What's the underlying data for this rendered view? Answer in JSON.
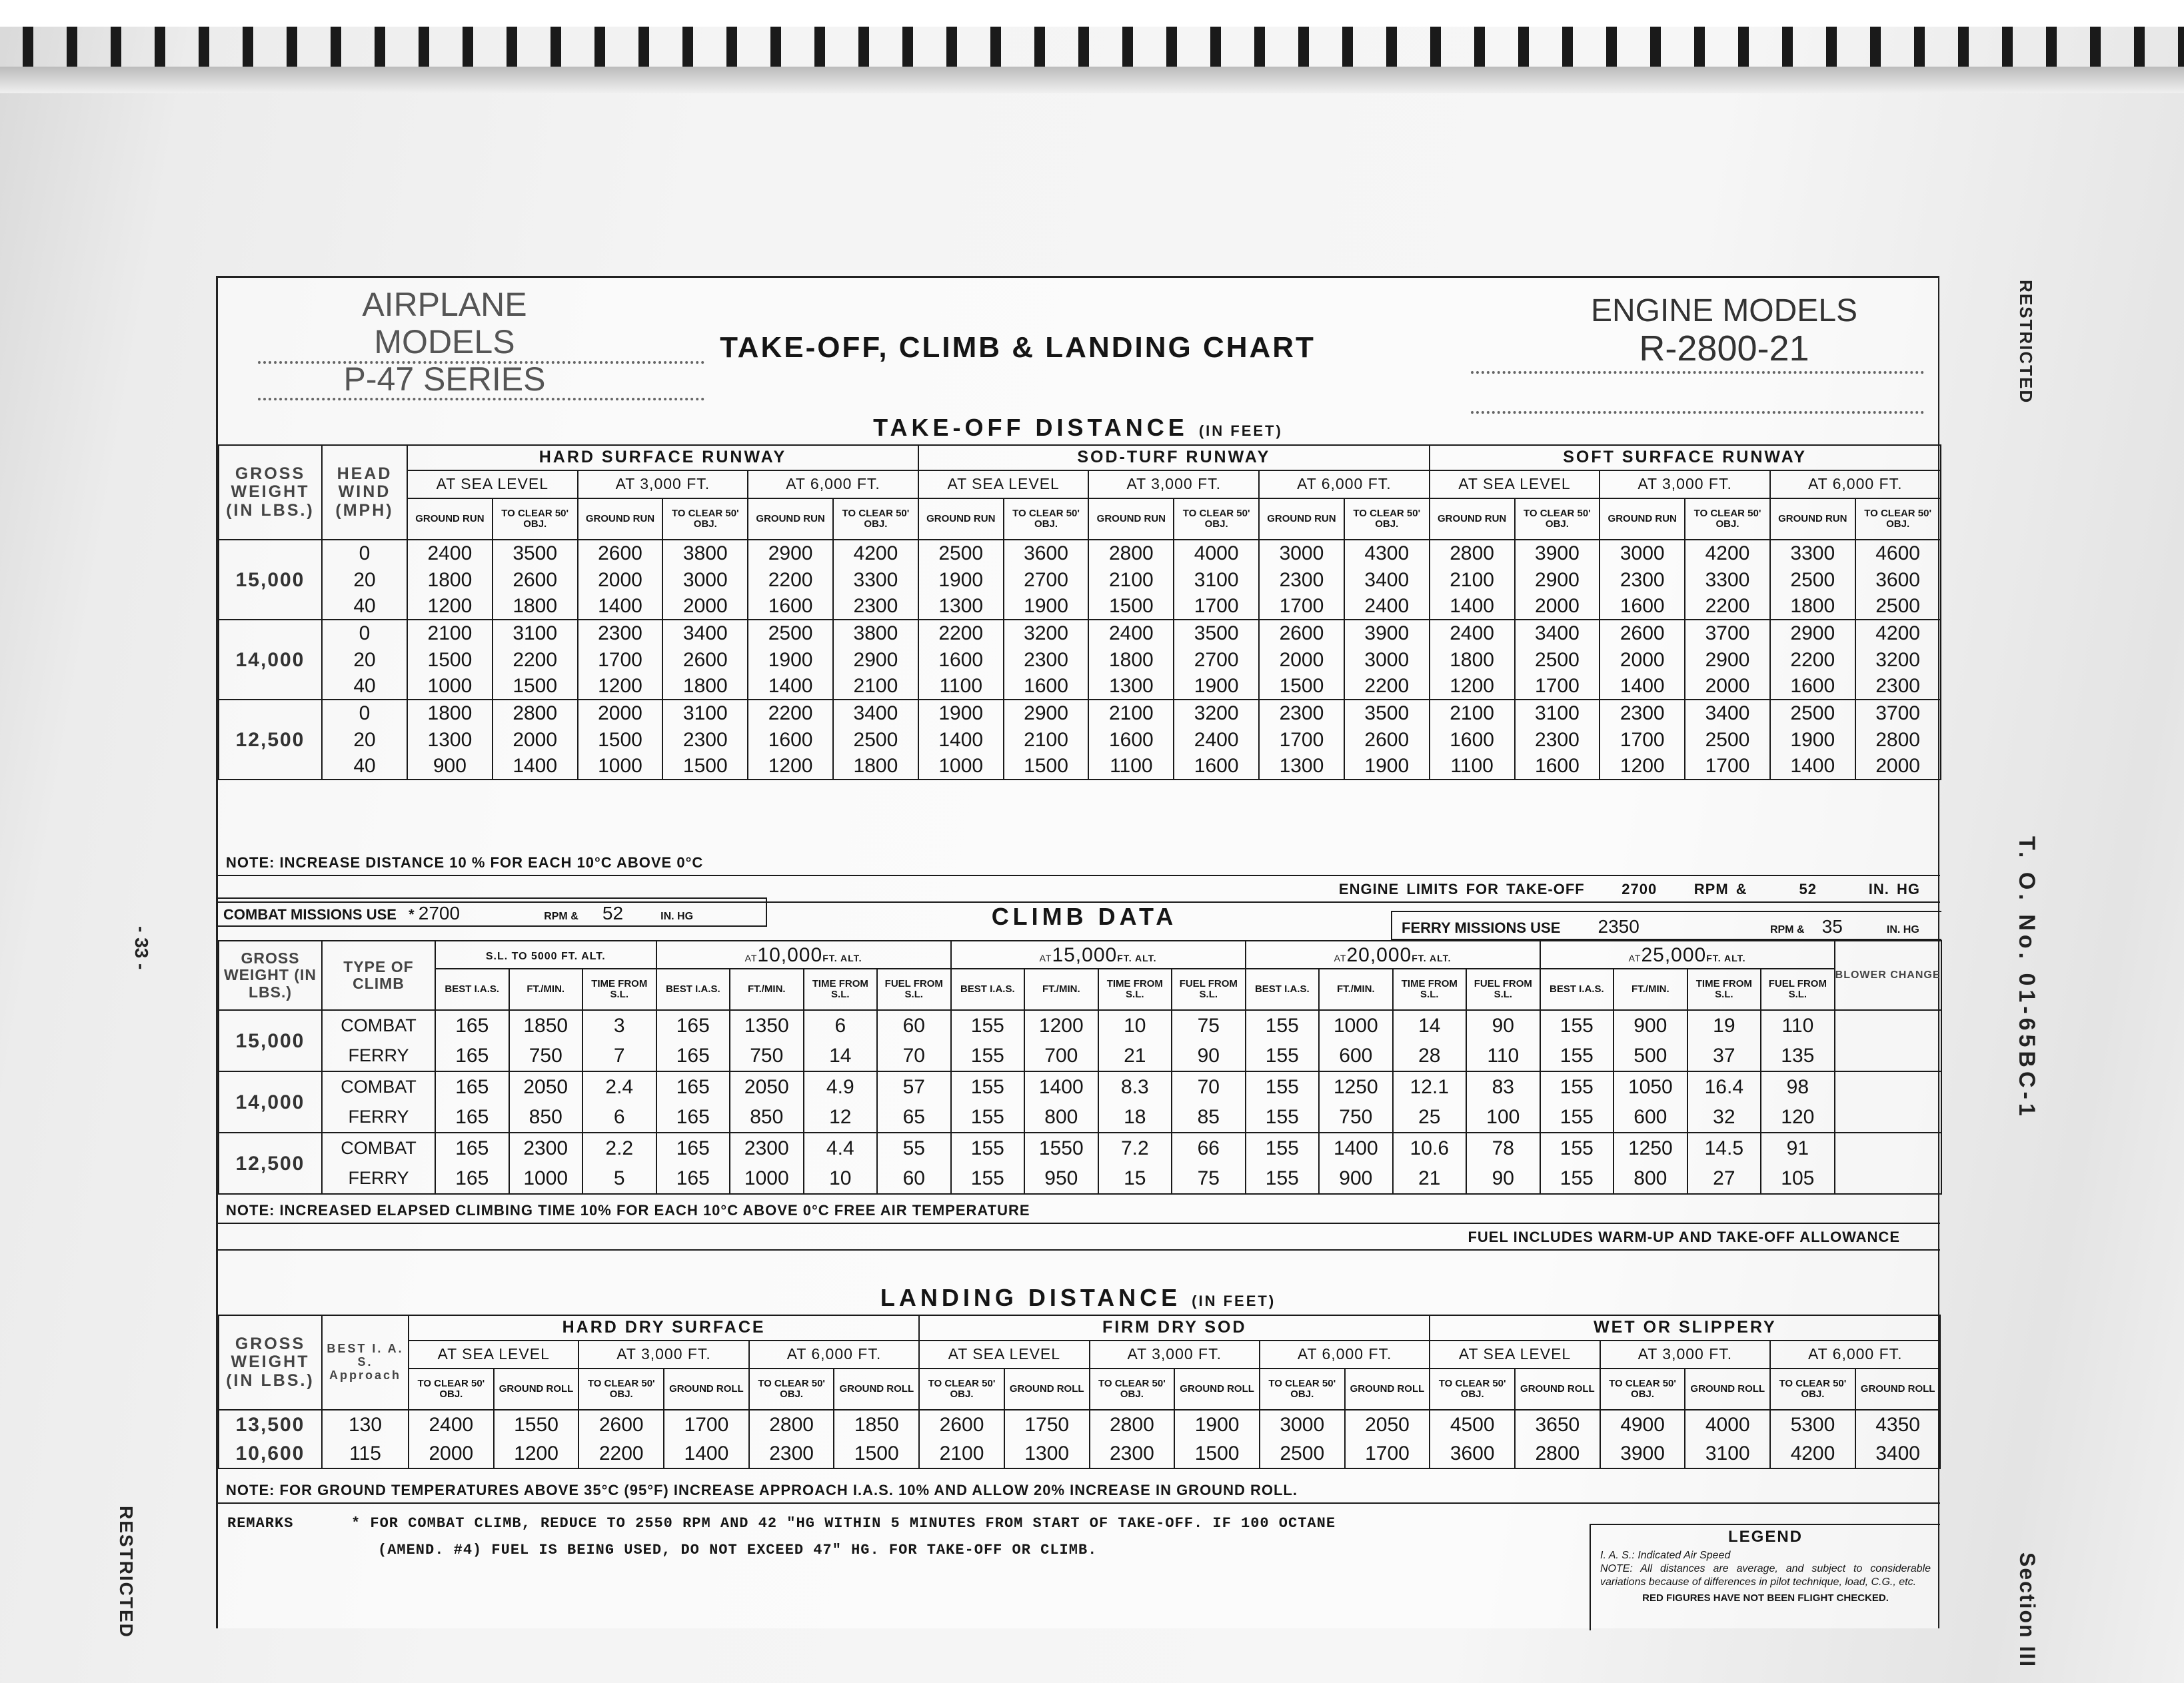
{
  "header": {
    "airplane_label": "AIRPLANE MODELS",
    "airplane_value": "P-47 SERIES",
    "title": "TAKE-OFF, CLIMB & LANDING CHART",
    "engine_label": "ENGINE MODELS",
    "engine_value": "R-2800-21"
  },
  "side": {
    "restricted_top": "RESTRICTED",
    "to_number": "T. O. No. 01-65BC-1",
    "section": "Section III",
    "page": "- 33 -",
    "restricted_bottom": "RESTRICTED"
  },
  "takeoff": {
    "title": "TAKE-OFF DISTANCE",
    "unit": "(IN FEET)",
    "col_gross": "GROSS WEIGHT (IN LBS.)",
    "col_wind": "HEAD WIND (MPH)",
    "surfaces": [
      "HARD SURFACE RUNWAY",
      "SOD-TURF RUNWAY",
      "SOFT SURFACE RUNWAY"
    ],
    "altitudes": [
      "AT SEA LEVEL",
      "AT 3,000 FT.",
      "AT 6,000 FT."
    ],
    "subcols": [
      "GROUND RUN",
      "TO CLEAR 50' OBJ."
    ],
    "blocks": [
      {
        "weight": "15,000",
        "rows": [
          {
            "wind": "0",
            "values": [
              "2400",
              "3500",
              "2600",
              "3800",
              "2900",
              "4200",
              "2500",
              "3600",
              "2800",
              "4000",
              "3000",
              "4300",
              "2800",
              "3900",
              "3000",
              "4200",
              "3300",
              "4600"
            ]
          },
          {
            "wind": "20",
            "values": [
              "1800",
              "2600",
              "2000",
              "3000",
              "2200",
              "3300",
              "1900",
              "2700",
              "2100",
              "3100",
              "2300",
              "3400",
              "2100",
              "2900",
              "2300",
              "3300",
              "2500",
              "3600"
            ]
          },
          {
            "wind": "40",
            "values": [
              "1200",
              "1800",
              "1400",
              "2000",
              "1600",
              "2300",
              "1300",
              "1900",
              "1500",
              "1700",
              "1700",
              "2400",
              "1400",
              "2000",
              "1600",
              "2200",
              "1800",
              "2500"
            ]
          }
        ]
      },
      {
        "weight": "14,000",
        "rows": [
          {
            "wind": "0",
            "values": [
              "2100",
              "3100",
              "2300",
              "3400",
              "2500",
              "3800",
              "2200",
              "3200",
              "2400",
              "3500",
              "2600",
              "3900",
              "2400",
              "3400",
              "2600",
              "3700",
              "2900",
              "4200"
            ]
          },
          {
            "wind": "20",
            "values": [
              "1500",
              "2200",
              "1700",
              "2600",
              "1900",
              "2900",
              "1600",
              "2300",
              "1800",
              "2700",
              "2000",
              "3000",
              "1800",
              "2500",
              "2000",
              "2900",
              "2200",
              "3200"
            ]
          },
          {
            "wind": "40",
            "values": [
              "1000",
              "1500",
              "1200",
              "1800",
              "1400",
              "2100",
              "1100",
              "1600",
              "1300",
              "1900",
              "1500",
              "2200",
              "1200",
              "1700",
              "1400",
              "2000",
              "1600",
              "2300"
            ]
          }
        ]
      },
      {
        "weight": "12,500",
        "rows": [
          {
            "wind": "0",
            "values": [
              "1800",
              "2800",
              "2000",
              "3100",
              "2200",
              "3400",
              "1900",
              "2900",
              "2100",
              "3200",
              "2300",
              "3500",
              "2100",
              "3100",
              "2300",
              "3400",
              "2500",
              "3700"
            ]
          },
          {
            "wind": "20",
            "values": [
              "1300",
              "2000",
              "1500",
              "2300",
              "1600",
              "2500",
              "1400",
              "2100",
              "1600",
              "2400",
              "1700",
              "2600",
              "1600",
              "2300",
              "1700",
              "2500",
              "1900",
              "2800"
            ]
          },
          {
            "wind": "40",
            "values": [
              "900",
              "1400",
              "1000",
              "1500",
              "1200",
              "1800",
              "1000",
              "1500",
              "1100",
              "1600",
              "1300",
              "1900",
              "1100",
              "1600",
              "1200",
              "1700",
              "1400",
              "2000"
            ]
          }
        ]
      }
    ],
    "note": "NOTE: INCREASE DISTANCE  10 % FOR EACH 10°C ABOVE 0°C",
    "engine_limits": {
      "label": "ENGINE LIMITS FOR TAKE-OFF",
      "rpm": "2700",
      "rpm_label": "RPM &",
      "hg": "52",
      "hg_label": "IN. HG"
    }
  },
  "climb": {
    "title": "CLIMB DATA",
    "combat": {
      "label": "COMBAT MISSIONS USE",
      "star": "*",
      "rpm": "2700",
      "rpm_label": "RPM &",
      "hg": "52",
      "hg_label": "IN. HG"
    },
    "ferry": {
      "label": "FERRY MISSIONS USE",
      "rpm": "2350",
      "rpm_label": "RPM &",
      "hg": "35",
      "hg_label": "IN. HG"
    },
    "col_gross": "GROSS WEIGHT (IN LBS.)",
    "col_type": "TYPE OF CLIMB",
    "col_blower": "BLOWER CHANGE",
    "altitudes": [
      {
        "pre": "",
        "value": "S.L. TO 5000 FT. ALT.",
        "post": ""
      },
      {
        "pre": "AT",
        "value": "10,000",
        "post": "FT. ALT."
      },
      {
        "pre": "AT",
        "value": "15,000",
        "post": "FT. ALT."
      },
      {
        "pre": "AT",
        "value": "20,000",
        "post": "FT. ALT."
      },
      {
        "pre": "AT",
        "value": "25,000",
        "post": "FT. ALT."
      }
    ],
    "subcols_first": [
      "BEST I.A.S.",
      "FT./MIN.",
      "TIME FROM S.L."
    ],
    "subcols": [
      "BEST I.A.S.",
      "FT./MIN.",
      "TIME FROM S.L.",
      "FUEL FROM S.L."
    ],
    "blocks": [
      {
        "weight": "15,000",
        "rows": [
          {
            "type": "COMBAT",
            "values": [
              "165",
              "1850",
              "3",
              "165",
              "1350",
              "6",
              "60",
              "155",
              "1200",
              "10",
              "75",
              "155",
              "1000",
              "14",
              "90",
              "155",
              "900",
              "19",
              "110"
            ]
          },
          {
            "type": "FERRY",
            "values": [
              "165",
              "750",
              "7",
              "165",
              "750",
              "14",
              "70",
              "155",
              "700",
              "21",
              "90",
              "155",
              "600",
              "28",
              "110",
              "155",
              "500",
              "37",
              "135"
            ]
          }
        ]
      },
      {
        "weight": "14,000",
        "rows": [
          {
            "type": "COMBAT",
            "values": [
              "165",
              "2050",
              "2.4",
              "165",
              "2050",
              "4.9",
              "57",
              "155",
              "1400",
              "8.3",
              "70",
              "155",
              "1250",
              "12.1",
              "83",
              "155",
              "1050",
              "16.4",
              "98"
            ]
          },
          {
            "type": "FERRY",
            "values": [
              "165",
              "850",
              "6",
              "165",
              "850",
              "12",
              "65",
              "155",
              "800",
              "18",
              "85",
              "155",
              "750",
              "25",
              "100",
              "155",
              "600",
              "32",
              "120"
            ]
          }
        ]
      },
      {
        "weight": "12,500",
        "rows": [
          {
            "type": "COMBAT",
            "values": [
              "165",
              "2300",
              "2.2",
              "165",
              "2300",
              "4.4",
              "55",
              "155",
              "1550",
              "7.2",
              "66",
              "155",
              "1400",
              "10.6",
              "78",
              "155",
              "1250",
              "14.5",
              "91"
            ]
          },
          {
            "type": "FERRY",
            "values": [
              "165",
              "1000",
              "5",
              "165",
              "1000",
              "10",
              "60",
              "155",
              "950",
              "15",
              "75",
              "155",
              "900",
              "21",
              "90",
              "155",
              "800",
              "27",
              "105"
            ]
          }
        ]
      }
    ],
    "note": "NOTE: INCREASED ELAPSED CLIMBING TIME 10% FOR EACH 10°C ABOVE 0°C FREE AIR TEMPERATURE",
    "fuel_note": "FUEL INCLUDES WARM-UP AND TAKE-OFF ALLOWANCE"
  },
  "landing": {
    "title": "LANDING DISTANCE",
    "unit": "(IN FEET)",
    "col_gross": "GROSS WEIGHT (IN LBS.)",
    "col_ias": "BEST I. A. S. Approach",
    "surfaces": [
      "HARD DRY SURFACE",
      "FIRM DRY SOD",
      "WET OR SLIPPERY"
    ],
    "altitudes": [
      "AT SEA LEVEL",
      "AT 3,000 FT.",
      "AT 6,000 FT."
    ],
    "subcols": [
      "TO CLEAR 50' OBJ.",
      "GROUND ROLL"
    ],
    "rows": [
      {
        "weight": "13,500",
        "ias": "130",
        "values": [
          "2400",
          "1550",
          "2600",
          "1700",
          "2800",
          "1850",
          "2600",
          "1750",
          "2800",
          "1900",
          "3000",
          "2050",
          "4500",
          "3650",
          "4900",
          "4000",
          "5300",
          "4350"
        ]
      },
      {
        "weight": "10,600",
        "ias": "115",
        "values": [
          "2000",
          "1200",
          "2200",
          "1400",
          "2300",
          "1500",
          "2100",
          "1300",
          "2300",
          "1500",
          "2500",
          "1700",
          "3600",
          "2800",
          "3900",
          "3100",
          "4200",
          "3400"
        ]
      }
    ],
    "note": "NOTE: FOR GROUND TEMPERATURES ABOVE 35°C (95°F) INCREASE APPROACH I.A.S. 10% AND ALLOW 20% INCREASE IN GROUND ROLL."
  },
  "remarks": {
    "label": "REMARKS",
    "line1": "* FOR COMBAT CLIMB, REDUCE TO 2550 RPM AND 42 \"HG WITHIN 5 MINUTES FROM START OF TAKE-OFF. IF 100 OCTANE",
    "line2": "(AMEND. #4) FUEL IS BEING USED, DO NOT EXCEED 47\" HG. FOR TAKE-OFF OR CLIMB."
  },
  "legend": {
    "title": "LEGEND",
    "ias": "I. A. S.: Indicated Air Speed",
    "note": "NOTE: All distances are average, and subject to considerable variations because of differences in pilot technique, load, C.G., etc.",
    "red": "RED FIGURES HAVE NOT BEEN FLIGHT CHECKED."
  }
}
